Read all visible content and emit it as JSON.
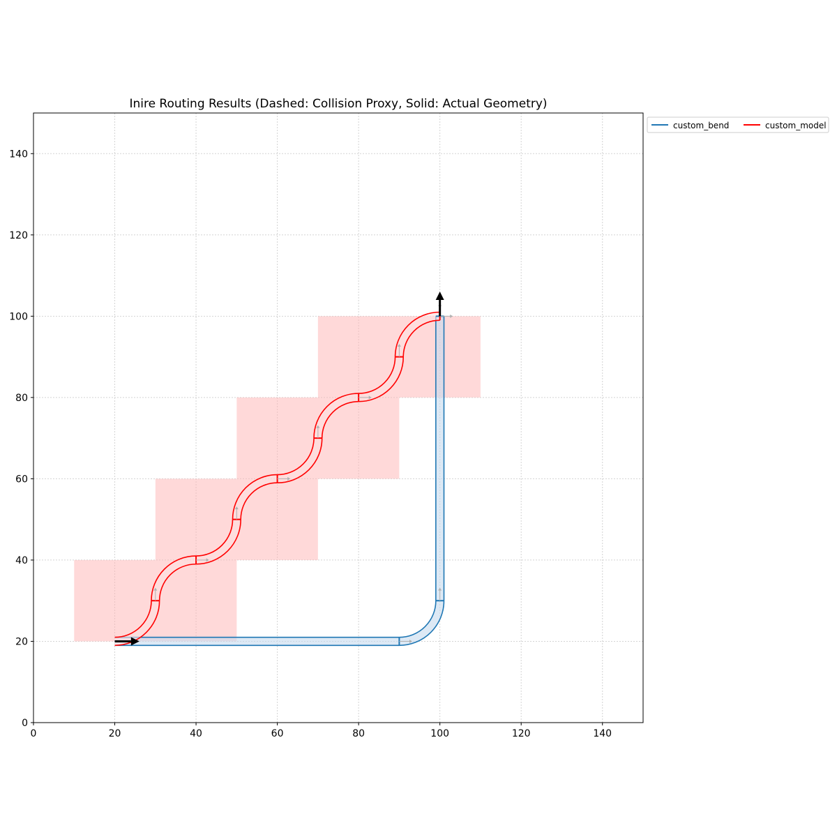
{
  "chart_data": {
    "type": "line",
    "title": "Inire Routing Results (Dashed: Collision Proxy, Solid: Actual Geometry)",
    "xlabel": "",
    "ylabel": "",
    "xlim": [
      0,
      150
    ],
    "ylim": [
      0,
      150
    ],
    "x_ticks": [
      "0",
      "20",
      "40",
      "60",
      "80",
      "100",
      "120",
      "140"
    ],
    "y_ticks": [
      "0",
      "20",
      "40",
      "60",
      "80",
      "100",
      "120",
      "140"
    ],
    "grid": true,
    "legend_placement": "outside top-right",
    "waveguide_width": 2,
    "series": [
      {
        "name": "custom_bend",
        "color": "#1f77b4",
        "fill": "#c6dbef",
        "segments": [
          {
            "kind": "straight",
            "from": [
              20,
              20
            ],
            "to": [
              90,
              20
            ],
            "dir": "east"
          },
          {
            "kind": "bend",
            "center": [
              90,
              30
            ],
            "radius": 10,
            "start_angle": -90,
            "end_angle": 0
          },
          {
            "kind": "straight",
            "from": [
              100,
              30
            ],
            "to": [
              100,
              100
            ],
            "dir": "north"
          }
        ],
        "ports": [
          [
            90,
            20,
            "east"
          ],
          [
            100,
            30,
            "north"
          ],
          [
            100,
            100,
            "north"
          ]
        ]
      },
      {
        "name": "custom_model",
        "color": "#ff0000",
        "fill": "#fde0e0",
        "segments": [
          {
            "kind": "bend",
            "center": [
              20,
              30
            ],
            "radius": 10,
            "start_angle": -90,
            "end_angle": 0
          },
          {
            "kind": "bend",
            "center": [
              40,
              30
            ],
            "radius": 10,
            "start_angle": 180,
            "end_angle": 90
          },
          {
            "kind": "bend",
            "center": [
              40,
              50
            ],
            "radius": 10,
            "start_angle": -90,
            "end_angle": 0
          },
          {
            "kind": "bend",
            "center": [
              60,
              50
            ],
            "radius": 10,
            "start_angle": 180,
            "end_angle": 90
          },
          {
            "kind": "bend",
            "center": [
              60,
              70
            ],
            "radius": 10,
            "start_angle": -90,
            "end_angle": 0
          },
          {
            "kind": "bend",
            "center": [
              80,
              70
            ],
            "radius": 10,
            "start_angle": 180,
            "end_angle": 90
          },
          {
            "kind": "bend",
            "center": [
              80,
              90
            ],
            "radius": 10,
            "start_angle": -90,
            "end_angle": 0
          },
          {
            "kind": "bend",
            "center": [
              100,
              90
            ],
            "radius": 10,
            "start_angle": 180,
            "end_angle": 90
          }
        ],
        "ports": [
          [
            30,
            30,
            "north"
          ],
          [
            40,
            40,
            "east"
          ],
          [
            50,
            50,
            "north"
          ],
          [
            60,
            60,
            "east"
          ],
          [
            70,
            70,
            "north"
          ],
          [
            80,
            80,
            "east"
          ],
          [
            90,
            90,
            "north"
          ],
          [
            100,
            100,
            "east"
          ]
        ]
      }
    ],
    "collision_proxies": [
      {
        "x0": 10,
        "y0": 20,
        "x1": 50,
        "y1": 40
      },
      {
        "x0": 30,
        "y0": 40,
        "x1": 70,
        "y1": 60
      },
      {
        "x0": 50,
        "y0": 60,
        "x1": 90,
        "y1": 80
      },
      {
        "x0": 70,
        "y0": 80,
        "x1": 110,
        "y1": 100
      }
    ],
    "proxy_color": "#ffb3b3",
    "source_arrow": {
      "at": [
        20,
        20
      ],
      "dir": "east"
    },
    "target_arrow": {
      "at": [
        100,
        100
      ],
      "dir": "north"
    }
  }
}
